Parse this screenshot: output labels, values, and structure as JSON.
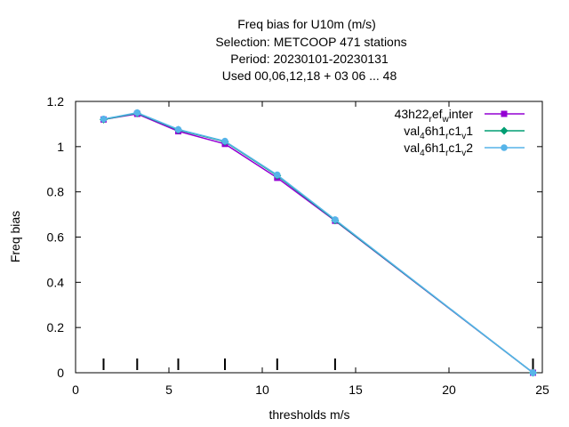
{
  "chart_data": {
    "type": "line",
    "title_lines": [
      "Freq bias  for U10m (m/s)",
      "Selection: METCOOP    471 stations",
      "Period: 20230101-20230131",
      "Used  00,06,12,18  + 03 06 ... 48"
    ],
    "xlabel": "thresholds m/s",
    "ylabel": "Freq bias",
    "xlim": [
      0,
      25
    ],
    "ylim": [
      0,
      1.2
    ],
    "x_ticks": [
      "0",
      "5",
      "10",
      "15",
      "20",
      "25"
    ],
    "y_ticks": [
      "0",
      "0.2",
      "0.4",
      "0.6",
      "0.8",
      "1",
      "1.2"
    ],
    "grid": false,
    "legend_position": "top-right",
    "threshold_markers": [
      1.5,
      3.3,
      5.5,
      8.0,
      10.8,
      13.9,
      24.5
    ],
    "series": [
      {
        "name_parts": [
          "43h22",
          "r",
          "ef",
          "w",
          "inter"
        ],
        "color": "#9400d3",
        "marker": "square",
        "x": [
          1.5,
          3.3,
          5.5,
          8.0,
          10.8,
          13.9,
          24.5
        ],
        "y": [
          1.12,
          1.145,
          1.068,
          1.012,
          0.862,
          0.672,
          0.0
        ]
      },
      {
        "name_parts": [
          "val",
          "4",
          "6h1",
          "r",
          "c1",
          "v",
          "1"
        ],
        "color": "#009e73",
        "marker": "diamond",
        "x": [
          1.5,
          3.3,
          5.5,
          8.0,
          10.8,
          13.9,
          24.5
        ],
        "y": [
          1.12,
          1.148,
          1.074,
          1.022,
          0.872,
          0.674,
          0.0
        ]
      },
      {
        "name_parts": [
          "val",
          "4",
          "6h1",
          "r",
          "c1",
          "v",
          "2"
        ],
        "color": "#56b4e9",
        "marker": "circle",
        "x": [
          1.5,
          3.3,
          5.5,
          8.0,
          10.8,
          13.9,
          24.5
        ],
        "y": [
          1.122,
          1.15,
          1.076,
          1.024,
          0.875,
          0.677,
          0.0
        ]
      }
    ]
  }
}
